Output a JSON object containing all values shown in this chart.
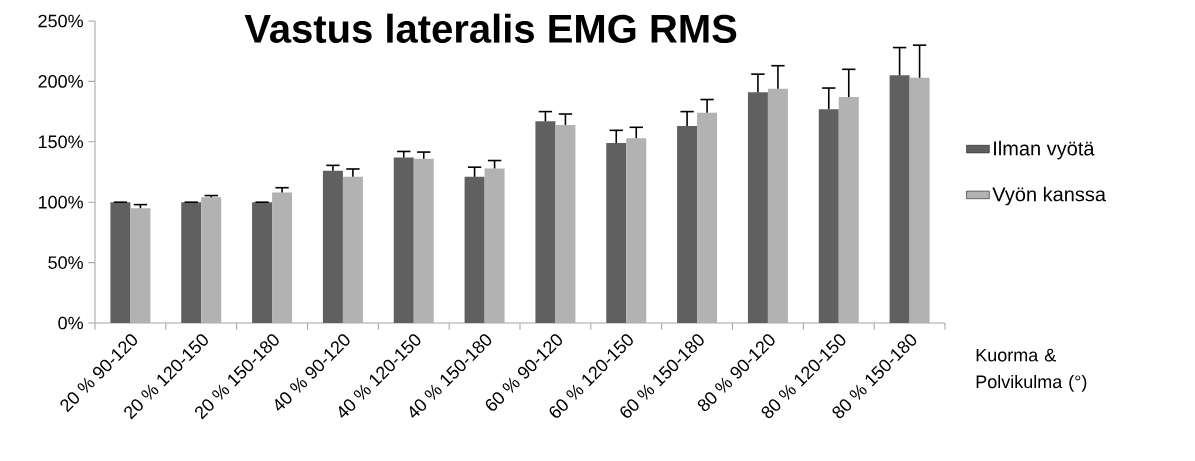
{
  "chart_data": {
    "type": "bar",
    "title": "Vastus lateralis EMG RMS",
    "xlabel": "Kuorma & Polvikulma (°)",
    "categories": [
      "20 % 90-120",
      "20 % 120-150",
      "20 % 150-180",
      "40 % 90-120",
      "40 % 120-150",
      "40 % 150-180",
      "60 % 90-120",
      "60 % 120-150",
      "60 % 150-180",
      "80 % 90-120",
      "80 % 120-150",
      "80 % 150-180"
    ],
    "series": [
      {
        "name": "Ilman vyötä",
        "color": "#606060",
        "values": [
          100,
          100,
          100,
          126,
          137,
          121,
          167,
          149,
          163,
          191,
          177,
          205
        ],
        "errors": [
          [
            100,
            100
          ],
          [
            100,
            100
          ],
          [
            100,
            100
          ],
          [
            126,
            130.5
          ],
          [
            137,
            142
          ],
          [
            121,
            129
          ],
          [
            167,
            175
          ],
          [
            149,
            159.5
          ],
          [
            163,
            175
          ],
          [
            191,
            206
          ],
          [
            177,
            194.5
          ],
          [
            205,
            228
          ]
        ]
      },
      {
        "name": "Vyön kanssa",
        "color": "#b2b2b2",
        "values": [
          95,
          104,
          108,
          121,
          136,
          128,
          164,
          153,
          174,
          194,
          187,
          203
        ],
        "errors": [
          [
            95,
            98
          ],
          [
            104,
            105.5
          ],
          [
            108,
            112
          ],
          [
            121,
            127.5
          ],
          [
            136,
            141.5
          ],
          [
            128,
            134.5
          ],
          [
            164,
            173
          ],
          [
            153,
            162
          ],
          [
            174,
            185
          ],
          [
            194,
            213
          ],
          [
            187,
            210
          ],
          [
            203,
            230
          ]
        ]
      }
    ],
    "ylim": [
      0,
      250
    ],
    "yticks": [
      {
        "value": 0,
        "label": "0%"
      },
      {
        "value": 50,
        "label": "50%"
      },
      {
        "value": 100,
        "label": "100%"
      },
      {
        "value": 150,
        "label": "150%"
      },
      {
        "value": 200,
        "label": "200%"
      },
      {
        "value": 250,
        "label": "250%"
      }
    ],
    "legend": "right",
    "grid": false
  }
}
